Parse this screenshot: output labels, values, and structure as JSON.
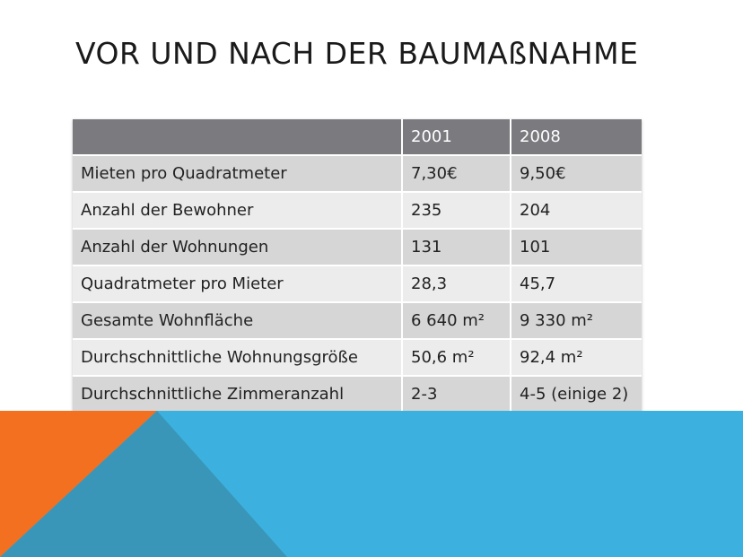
{
  "slide": {
    "title": "VOR UND NACH DER BAUMAßNAHME"
  },
  "table": {
    "headers": [
      "",
      "2001",
      "2008"
    ],
    "rows": [
      [
        "Mieten pro Quadratmeter",
        "7,30€",
        "9,50€"
      ],
      [
        "Anzahl der Bewohner",
        "235",
        "204"
      ],
      [
        "Anzahl der Wohnungen",
        "131",
        "101"
      ],
      [
        "Quadratmeter pro Mieter",
        "28,3",
        "45,7"
      ],
      [
        "Gesamte Wohnfläche",
        "6 640 m²",
        "9 330 m²"
      ],
      [
        "Durchschnittliche Wohnungsgröße",
        "50,6 m²",
        "92,4 m²"
      ],
      [
        "Durchschnittliche Zimmeranzahl",
        "2-3",
        "4-5 (einige 2)"
      ]
    ]
  },
  "colors": {
    "header_fill": "#7a7a7f",
    "row_odd": "#d6d6d6",
    "row_even": "#ececec",
    "decor_blue": "#3cb1e0",
    "decor_orange": "#f37021",
    "decor_teal": "#3a96b8"
  }
}
